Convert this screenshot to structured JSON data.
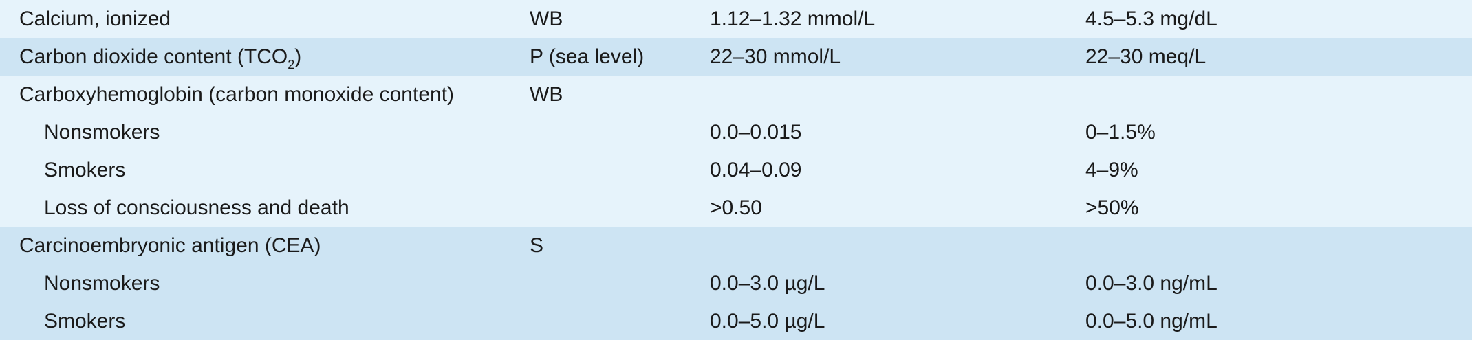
{
  "rows": [
    {
      "analyte": "Calcium, ionized",
      "specimen": "WB",
      "si": "1.12–1.32 mmol/L",
      "conventional": "4.5–5.3 mg/dL"
    },
    {
      "analyte_prefix": "Carbon dioxide content (TCO",
      "analyte_sub": "2",
      "analyte_suffix": ")",
      "specimen": "P (sea level)",
      "si": "22–30 mmol/L",
      "conventional": "22–30 meq/L"
    },
    {
      "analyte": "Carboxyhemoglobin (carbon monoxide content)",
      "specimen": "WB",
      "si": "",
      "conventional": ""
    },
    {
      "analyte": "Nonsmokers",
      "specimen": "",
      "si": "0.0–0.015",
      "conventional": "0–1.5%"
    },
    {
      "analyte": "Smokers",
      "specimen": "",
      "si": "0.04–0.09",
      "conventional": "4–9%"
    },
    {
      "analyte": "Loss of consciousness and death",
      "specimen": "",
      "si": ">0.50",
      "conventional": ">50%"
    },
    {
      "analyte": "Carcinoembryonic antigen (CEA)",
      "specimen": "S",
      "si": "",
      "conventional": ""
    },
    {
      "analyte": "Nonsmokers",
      "specimen": "",
      "si": "0.0–3.0 µg/L",
      "conventional": "0.0–3.0 ng/mL"
    },
    {
      "analyte": "Smokers",
      "specimen": "",
      "si": "0.0–5.0 µg/L",
      "conventional": "0.0–5.0 ng/mL"
    }
  ]
}
